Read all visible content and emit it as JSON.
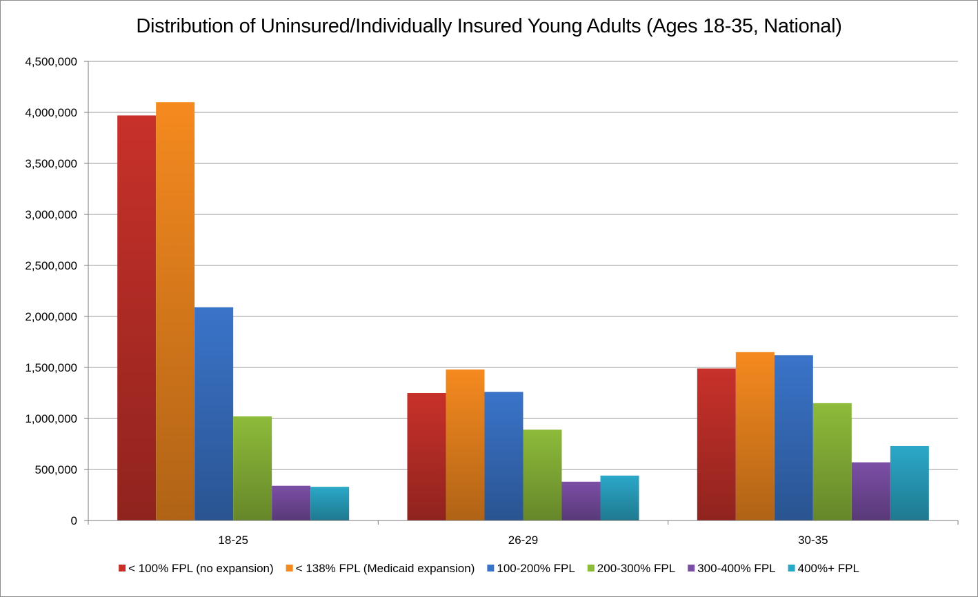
{
  "chart_data": {
    "type": "bar",
    "title": "Distribution of Uninsured/Individually Insured Young Adults (Ages 18-35, National)",
    "xlabel": "",
    "ylabel": "",
    "categories": [
      "18-25",
      "26-29",
      "30-35"
    ],
    "ylim": [
      0,
      4500000
    ],
    "y_ticks": [
      0,
      500000,
      1000000,
      1500000,
      2000000,
      2500000,
      3000000,
      3500000,
      4000000,
      4500000
    ],
    "y_tick_labels": [
      "0",
      "500,000",
      "1,000,000",
      "1,500,000",
      "2,000,000",
      "2,500,000",
      "3,000,000",
      "3,500,000",
      "4,000,000",
      "4,500,000"
    ],
    "grid": true,
    "legend_position": "bottom",
    "series": [
      {
        "name": "< 100% FPL (no expansion)",
        "color": "#c8312a",
        "values": [
          3970000,
          1250000,
          1490000
        ]
      },
      {
        "name": "< 138% FPL (Medicaid expansion)",
        "color": "#f58a1f",
        "values": [
          4100000,
          1480000,
          1650000
        ]
      },
      {
        "name": "100-200% FPL",
        "color": "#3a74c9",
        "values": [
          2090000,
          1260000,
          1620000
        ]
      },
      {
        "name": "200-300% FPL",
        "color": "#8dbb3a",
        "values": [
          1020000,
          890000,
          1150000
        ]
      },
      {
        "name": "300-400% FPL",
        "color": "#7b4fa6",
        "values": [
          340000,
          380000,
          570000
        ]
      },
      {
        "name": "400%+ FPL",
        "color": "#2ba8c8",
        "values": [
          330000,
          440000,
          730000
        ]
      }
    ]
  }
}
